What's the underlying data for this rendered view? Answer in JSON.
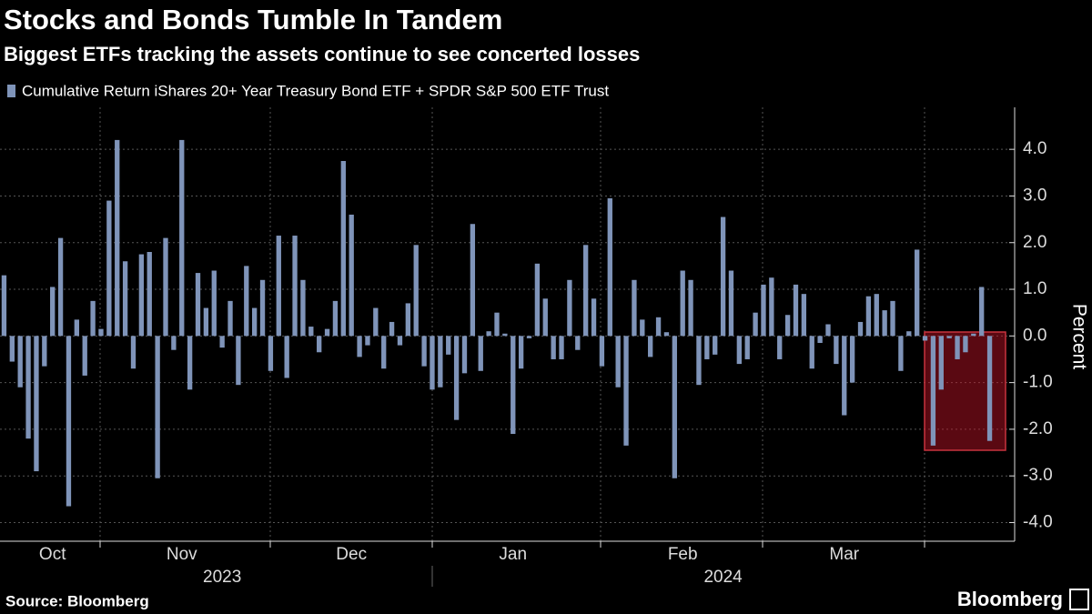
{
  "chart_data": {
    "type": "bar",
    "title": "Stocks and Bonds Tumble In Tandem",
    "subtitle": "Biggest ETFs tracking the assets continue to see concerted losses",
    "source": "Source: Bloomberg",
    "brand": "Bloomberg",
    "y_label": "Percent",
    "series": [
      {
        "name": "Cumulative Return iShares 20+ Year Treasury Bond ETF + SPDR S&P 500 ETF Trust",
        "color": "#7f94b9",
        "values": [
          1.3,
          -0.55,
          -1.1,
          -2.2,
          -2.9,
          -0.65,
          1.05,
          2.1,
          -3.65,
          0.35,
          -0.85,
          0.75,
          0.15,
          2.9,
          4.2,
          1.6,
          -0.7,
          1.75,
          1.8,
          -3.05,
          2.1,
          -0.3,
          4.2,
          -1.15,
          1.35,
          0.6,
          1.4,
          -0.25,
          0.75,
          -1.05,
          1.5,
          0.6,
          1.2,
          -0.75,
          2.15,
          -0.9,
          2.15,
          1.2,
          0.2,
          -0.35,
          0.15,
          0.75,
          3.75,
          2.6,
          -0.45,
          -0.2,
          0.6,
          -0.7,
          0.3,
          -0.2,
          0.7,
          1.95,
          -0.65,
          -1.15,
          -1.1,
          -0.4,
          -1.8,
          -0.8,
          2.4,
          -0.75,
          0.1,
          0.5,
          0.05,
          -2.1,
          -0.7,
          -0.05,
          1.55,
          0.8,
          -0.5,
          -0.5,
          1.2,
          -0.3,
          1.95,
          0.8,
          -0.65,
          2.95,
          -1.1,
          -2.35,
          1.2,
          0.35,
          -0.45,
          0.4,
          0.08,
          -3.05,
          1.4,
          1.2,
          -1.05,
          -0.5,
          -0.4,
          2.55,
          1.4,
          -0.6,
          -0.5,
          0.5,
          1.1,
          1.25,
          -0.5,
          0.45,
          1.1,
          0.9,
          -0.7,
          -0.15,
          0.25,
          -0.6,
          -1.7,
          -1.0,
          0.3,
          0.85,
          0.9,
          0.55,
          0.75,
          -0.75,
          0.1,
          1.85,
          -0.1,
          -2.35,
          -1.15,
          -0.05,
          -0.5,
          -0.35,
          0.05,
          1.05,
          -2.25
        ]
      }
    ],
    "categories": [
      null,
      null,
      null,
      null,
      null,
      null,
      "Oct",
      null,
      null,
      null,
      null,
      null,
      null,
      null,
      null,
      null,
      null,
      null,
      null,
      null,
      null,
      null,
      "Nov",
      null,
      null,
      null,
      null,
      null,
      null,
      null,
      null,
      null,
      null,
      null,
      null,
      null,
      null,
      null,
      null,
      null,
      null,
      null,
      null,
      "Dec",
      null,
      null,
      null,
      null,
      null,
      null,
      null,
      null,
      null,
      null,
      null,
      null,
      null,
      null,
      null,
      null,
      null,
      null,
      null,
      "Jan",
      null,
      null,
      null,
      null,
      null,
      null,
      null,
      null,
      null,
      null,
      null,
      null,
      null,
      null,
      null,
      null,
      null,
      null,
      null,
      null,
      "Feb",
      null,
      null,
      null,
      null,
      null,
      null,
      null,
      null,
      null,
      null,
      null,
      null,
      null,
      null,
      null,
      null,
      null,
      null,
      null,
      "Mar",
      null,
      null,
      null,
      null,
      null,
      null,
      null,
      null,
      null,
      null,
      null,
      null,
      null,
      null,
      null,
      null,
      null,
      null
    ],
    "years": [
      null,
      null,
      null,
      null,
      null,
      null,
      null,
      null,
      null,
      null,
      null,
      null,
      null,
      null,
      null,
      null,
      null,
      null,
      null,
      null,
      null,
      null,
      null,
      null,
      null,
      null,
      null,
      "2023",
      null,
      null,
      null,
      null,
      null,
      null,
      null,
      null,
      null,
      null,
      null,
      null,
      null,
      null,
      null,
      null,
      null,
      null,
      null,
      null,
      null,
      null,
      null,
      null,
      null,
      null,
      null,
      null,
      null,
      null,
      null,
      null,
      null,
      null,
      null,
      null,
      null,
      null,
      null,
      null,
      null,
      null,
      null,
      null,
      null,
      null,
      null,
      null,
      null,
      null,
      null,
      null,
      null,
      null,
      null,
      null,
      null,
      null,
      null,
      null,
      null,
      "2024",
      null,
      null,
      null,
      null,
      null,
      null,
      null,
      null,
      null,
      null,
      null,
      null,
      null,
      null,
      null,
      null,
      null,
      null,
      null,
      null,
      null,
      null,
      null,
      null,
      null,
      null,
      null,
      null,
      null,
      null,
      null,
      null,
      null,
      null,
      null,
      null,
      null,
      null,
      null
    ],
    "ylim": [
      -4.4,
      4.9
    ],
    "yticks": [
      {
        "value": -4,
        "label": "-4.0"
      },
      {
        "value": -3,
        "label": "-3.0"
      },
      {
        "value": -2,
        "label": "-2.0"
      },
      {
        "value": -1,
        "label": "-1.0"
      },
      {
        "value": 0,
        "label": "0.0"
      },
      {
        "value": 1,
        "label": "1.0"
      },
      {
        "value": 2,
        "label": "2.0"
      },
      {
        "value": 3,
        "label": "3.0"
      },
      {
        "value": 4,
        "label": "4.0"
      }
    ],
    "grid": true
  }
}
